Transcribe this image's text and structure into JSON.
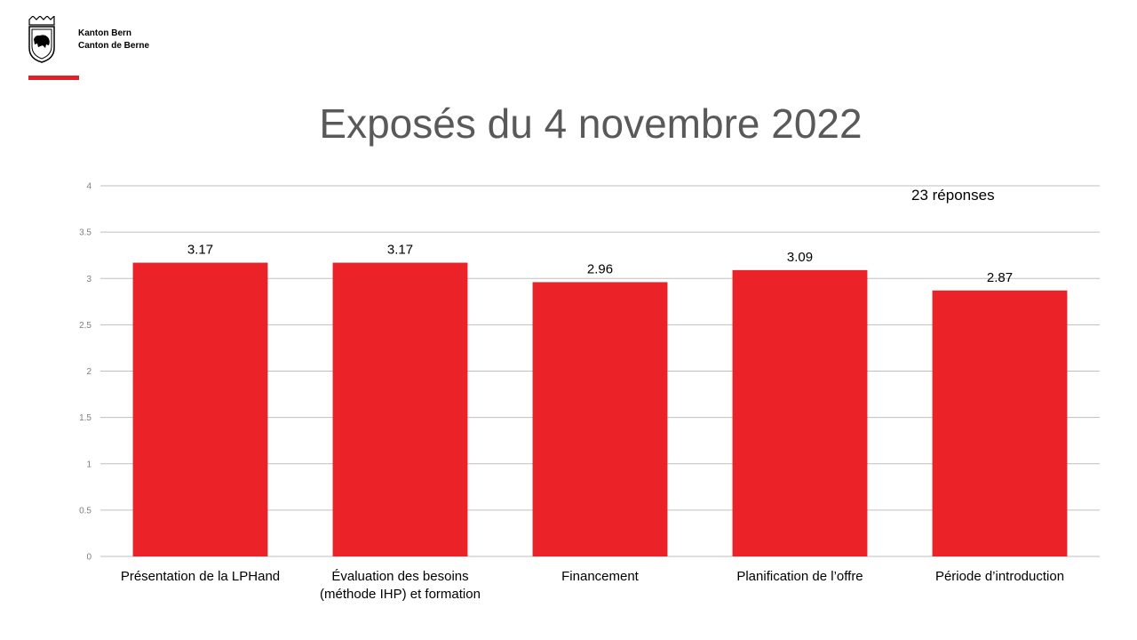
{
  "header": {
    "org_line1": "Kanton Bern",
    "org_line2": "Canton de Berne",
    "logo": "bern-coat-of-arms"
  },
  "brand_color": "#e3202a",
  "responses_note": "23 réponses",
  "chart_data": {
    "type": "bar",
    "title": "Exposés du 4 novembre 2022",
    "categories": [
      [
        "Présentation de la LPHand"
      ],
      [
        "Évaluation des besoins",
        "(méthode IHP) et formation"
      ],
      [
        "Financement"
      ],
      [
        "Planification  de l’offre"
      ],
      [
        "Période  d’introduction"
      ]
    ],
    "values": [
      3.17,
      3.17,
      2.96,
      3.09,
      2.87
    ],
    "data_labels": [
      "3.17",
      "3.17",
      "2.96",
      "3.09",
      "2.87"
    ],
    "ylim": [
      0,
      4
    ],
    "yticks": [
      "0",
      "0.5",
      "1",
      "1.5",
      "2",
      "2.5",
      "3",
      "3.5",
      "4"
    ],
    "grid": true,
    "bar_color": "#ec2229",
    "xlabel": "",
    "ylabel": ""
  }
}
